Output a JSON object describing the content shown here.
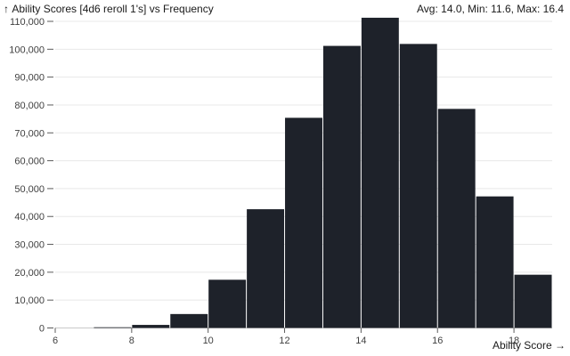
{
  "header": {
    "y_axis_arrow": "↑",
    "title": "Ability Scores [4d6 reroll 1's] vs Frequency",
    "stats": "Avg: 14.0, Min: 11.6, Max: 16.4"
  },
  "x_axis": {
    "label": "Ability Score",
    "arrow": "→"
  },
  "colors": {
    "bar": "#1e222a",
    "grid": "#e8e8e8",
    "zero_line": "#c9c9c9",
    "tick_mark": "#5b5b5b",
    "tick_text": "#3f3f3f",
    "text": "#1a1a1a",
    "background": "#ffffff"
  },
  "chart_data": {
    "type": "bar",
    "title": "Ability Scores [4d6 reroll 1's] vs Frequency",
    "subtitle": "Avg: 14.0, Min: 11.6, Max: 16.4",
    "xlabel": "Ability Score",
    "ylabel": "Frequency",
    "xlim": [
      6,
      19
    ],
    "ylim": [
      0,
      110000
    ],
    "grid": "horizontal",
    "legend": "none",
    "bin_width": 1,
    "x": [
      7,
      8,
      9,
      10,
      11,
      12,
      13,
      14,
      15,
      16,
      17,
      18
    ],
    "values": [
      250,
      1100,
      5000,
      17300,
      42600,
      75400,
      101200,
      111300,
      101900,
      78600,
      47200,
      19100
    ],
    "x_ticks": [
      {
        "v": 6,
        "label": "6"
      },
      {
        "v": 8,
        "label": "8"
      },
      {
        "v": 10,
        "label": "10"
      },
      {
        "v": 12,
        "label": "12"
      },
      {
        "v": 14,
        "label": "14"
      },
      {
        "v": 16,
        "label": "16"
      },
      {
        "v": 18,
        "label": "18"
      }
    ],
    "y_ticks": [
      {
        "v": 0,
        "label": "0"
      },
      {
        "v": 10000,
        "label": "10,000"
      },
      {
        "v": 20000,
        "label": "20,000"
      },
      {
        "v": 30000,
        "label": "30,000"
      },
      {
        "v": 40000,
        "label": "40,000"
      },
      {
        "v": 50000,
        "label": "50,000"
      },
      {
        "v": 60000,
        "label": "60,000"
      },
      {
        "v": 70000,
        "label": "70,000"
      },
      {
        "v": 80000,
        "label": "80,000"
      },
      {
        "v": 90000,
        "label": "90,000"
      },
      {
        "v": 100000,
        "label": "100,000"
      },
      {
        "v": 110000,
        "label": "110,000"
      }
    ]
  }
}
